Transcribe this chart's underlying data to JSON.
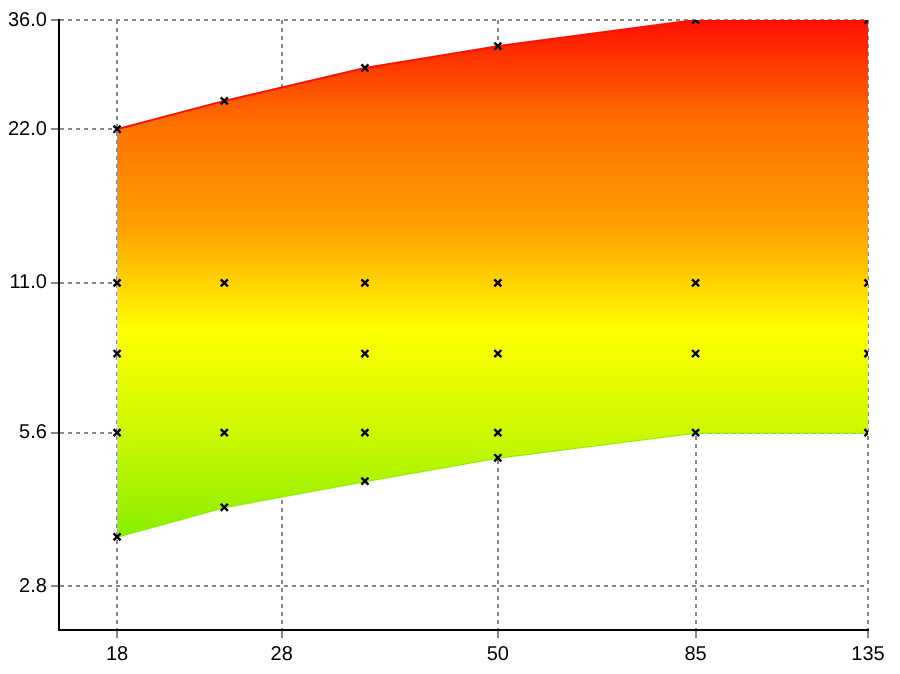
{
  "chart_data": {
    "type": "area",
    "log": "xy",
    "grid": true,
    "legend": false,
    "xlim": [
      15.4,
      135
    ],
    "xticks": [
      18,
      28,
      50,
      85,
      135
    ],
    "ylim": [
      2.3,
      36
    ],
    "yticks": [
      {
        "value": 2.8,
        "label": "2.8"
      },
      {
        "value": 5.6,
        "label": "5.6"
      },
      {
        "value": 11,
        "label": "11.0"
      },
      {
        "value": 22,
        "label": "22.0"
      },
      {
        "value": 36,
        "label": "36.0"
      }
    ],
    "series": [
      {
        "marker": "none",
        "x": [
          18,
          24,
          35,
          50,
          85,
          135
        ],
        "values": [
          22,
          25,
          29,
          32,
          36,
          36
        ],
        "colors": [
          "#ff1000",
          "#ff7000",
          "#ffa000",
          "#ffff00",
          "#ccf800",
          "#88ee00"
        ]
      },
      {
        "type": "line",
        "marker": "none",
        "color": "#88ee00",
        "x": [
          18,
          24,
          35,
          50,
          85,
          135
        ],
        "values": [
          3.5,
          4.0,
          4.5,
          5.0,
          5.6,
          5.6
        ]
      },
      {
        "type": "scatter",
        "marker": "cross",
        "color": "#000000",
        "x": [
          18,
          18,
          18,
          18,
          18,
          24,
          24,
          24,
          24,
          35,
          35,
          35,
          35,
          35,
          50,
          50,
          50,
          50,
          50,
          85,
          85,
          85,
          85,
          135,
          135,
          135,
          135
        ],
        "values": [
          22,
          11,
          8,
          5.6,
          3.5,
          25,
          11,
          5.6,
          4.0,
          29,
          11,
          8,
          5.6,
          4.5,
          32,
          11,
          8,
          5.6,
          5.0,
          36,
          11,
          8,
          5.6,
          36,
          11,
          8,
          5.6
        ]
      }
    ]
  }
}
